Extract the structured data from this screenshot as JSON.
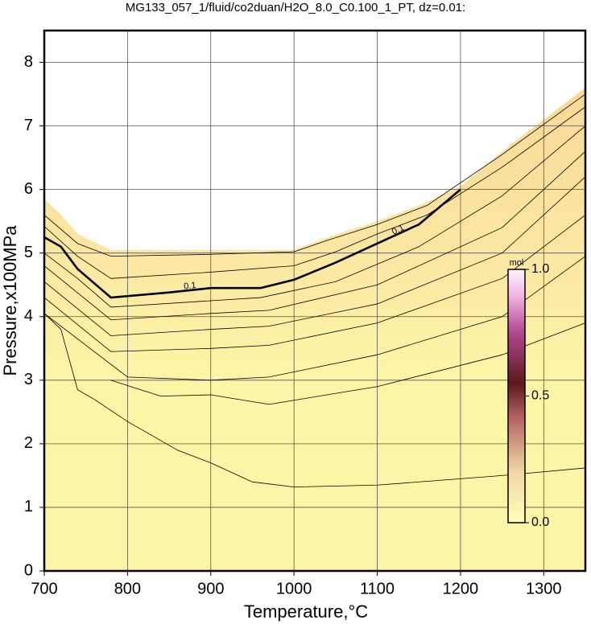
{
  "chart_data": {
    "type": "contour",
    "title": "MG133_057_1/fluid/co2duan/H2O_8.0_C0.100_1_PT, dz=0.01:",
    "x_label": "Temperature,°C",
    "y_label": "Pressure,x100MPa",
    "xlim": [
      700,
      1350
    ],
    "xticks": [
      700,
      800,
      900,
      1000,
      1100,
      1200,
      1300
    ],
    "ylim": [
      0,
      8.5
    ],
    "yticks": [
      0,
      1,
      2,
      3,
      4,
      5,
      6,
      7,
      8
    ],
    "grid": true,
    "field": {
      "color": "#fdf5a6",
      "x": [
        700,
        700,
        720,
        740,
        780,
        1000,
        1040,
        1100,
        1160,
        1200,
        1260,
        1300,
        1350,
        1350
      ],
      "values": [
        0,
        5.85,
        5.6,
        5.3,
        5.05,
        5.05,
        5.25,
        5.5,
        5.8,
        6.05,
        6.7,
        7.1,
        7.6,
        0
      ]
    },
    "series": [
      {
        "color": "#000000",
        "x": [
          700,
          740,
          780,
          900,
          1000,
          1040,
          1100,
          1160,
          1250,
          1350
        ],
        "values": [
          5.6,
          5.15,
          4.95,
          4.98,
          5.02,
          5.2,
          5.45,
          5.75,
          6.55,
          7.5
        ]
      },
      {
        "color": "#000000",
        "x": [
          700,
          740,
          780,
          900,
          1000,
          1050,
          1100,
          1160,
          1250,
          1350
        ],
        "values": [
          5.42,
          4.95,
          4.6,
          4.7,
          4.8,
          5.02,
          5.3,
          5.6,
          6.35,
          7.3
        ]
      },
      {
        "name": "0.1",
        "bold": true,
        "color": "#000000",
        "x": [
          700,
          720,
          740,
          780,
          850,
          900,
          960,
          1000,
          1050,
          1100,
          1150,
          1200
        ],
        "values": [
          5.25,
          5.1,
          4.75,
          4.3,
          4.38,
          4.45,
          4.45,
          4.58,
          4.85,
          5.15,
          5.45,
          6.0
        ]
      },
      {
        "color": "#000000",
        "x": [
          700,
          740,
          780,
          900,
          960,
          1050,
          1150,
          1250,
          1350
        ],
        "values": [
          5.0,
          4.6,
          4.15,
          4.25,
          4.3,
          4.55,
          5.1,
          5.9,
          7.0
        ]
      },
      {
        "color": "#000000",
        "x": [
          700,
          780,
          900,
          970,
          1100,
          1250,
          1350
        ],
        "values": [
          4.8,
          3.95,
          4.05,
          4.1,
          4.5,
          5.4,
          6.6
        ]
      },
      {
        "color": "#000000",
        "x": [
          700,
          780,
          900,
          970,
          1100,
          1250,
          1350
        ],
        "values": [
          4.55,
          3.7,
          3.8,
          3.85,
          4.2,
          5.0,
          6.2
        ]
      },
      {
        "color": "#000000",
        "x": [
          700,
          780,
          900,
          970,
          1100,
          1250,
          1350
        ],
        "values": [
          4.3,
          3.45,
          3.5,
          3.55,
          3.9,
          4.6,
          5.6
        ]
      },
      {
        "color": "#000000",
        "x": [
          700,
          800,
          900,
          970,
          1100,
          1250,
          1350
        ],
        "values": [
          4.05,
          3.05,
          3.0,
          3.05,
          3.4,
          4.0,
          4.95
        ]
      },
      {
        "color": "#000000",
        "x": [
          780,
          840,
          900,
          970,
          1100,
          1250,
          1350
        ],
        "values": [
          3.0,
          2.75,
          2.77,
          2.62,
          2.9,
          3.4,
          3.9
        ]
      },
      {
        "color": "#000000",
        "x": [
          700,
          720,
          740,
          760,
          800,
          860,
          900,
          950,
          1000,
          1100,
          1250,
          1350
        ],
        "values": [
          4.05,
          3.8,
          2.85,
          2.7,
          2.35,
          1.9,
          1.7,
          1.4,
          1.32,
          1.35,
          1.5,
          1.62
        ]
      }
    ],
    "colorbar": {
      "label": "mol",
      "lim": [
        0,
        1
      ],
      "ticks": [
        {
          "value": 0,
          "label": "0.0"
        },
        {
          "value": 0.5,
          "label": "0.5"
        },
        {
          "value": 1,
          "label": "1.0"
        }
      ]
    }
  }
}
